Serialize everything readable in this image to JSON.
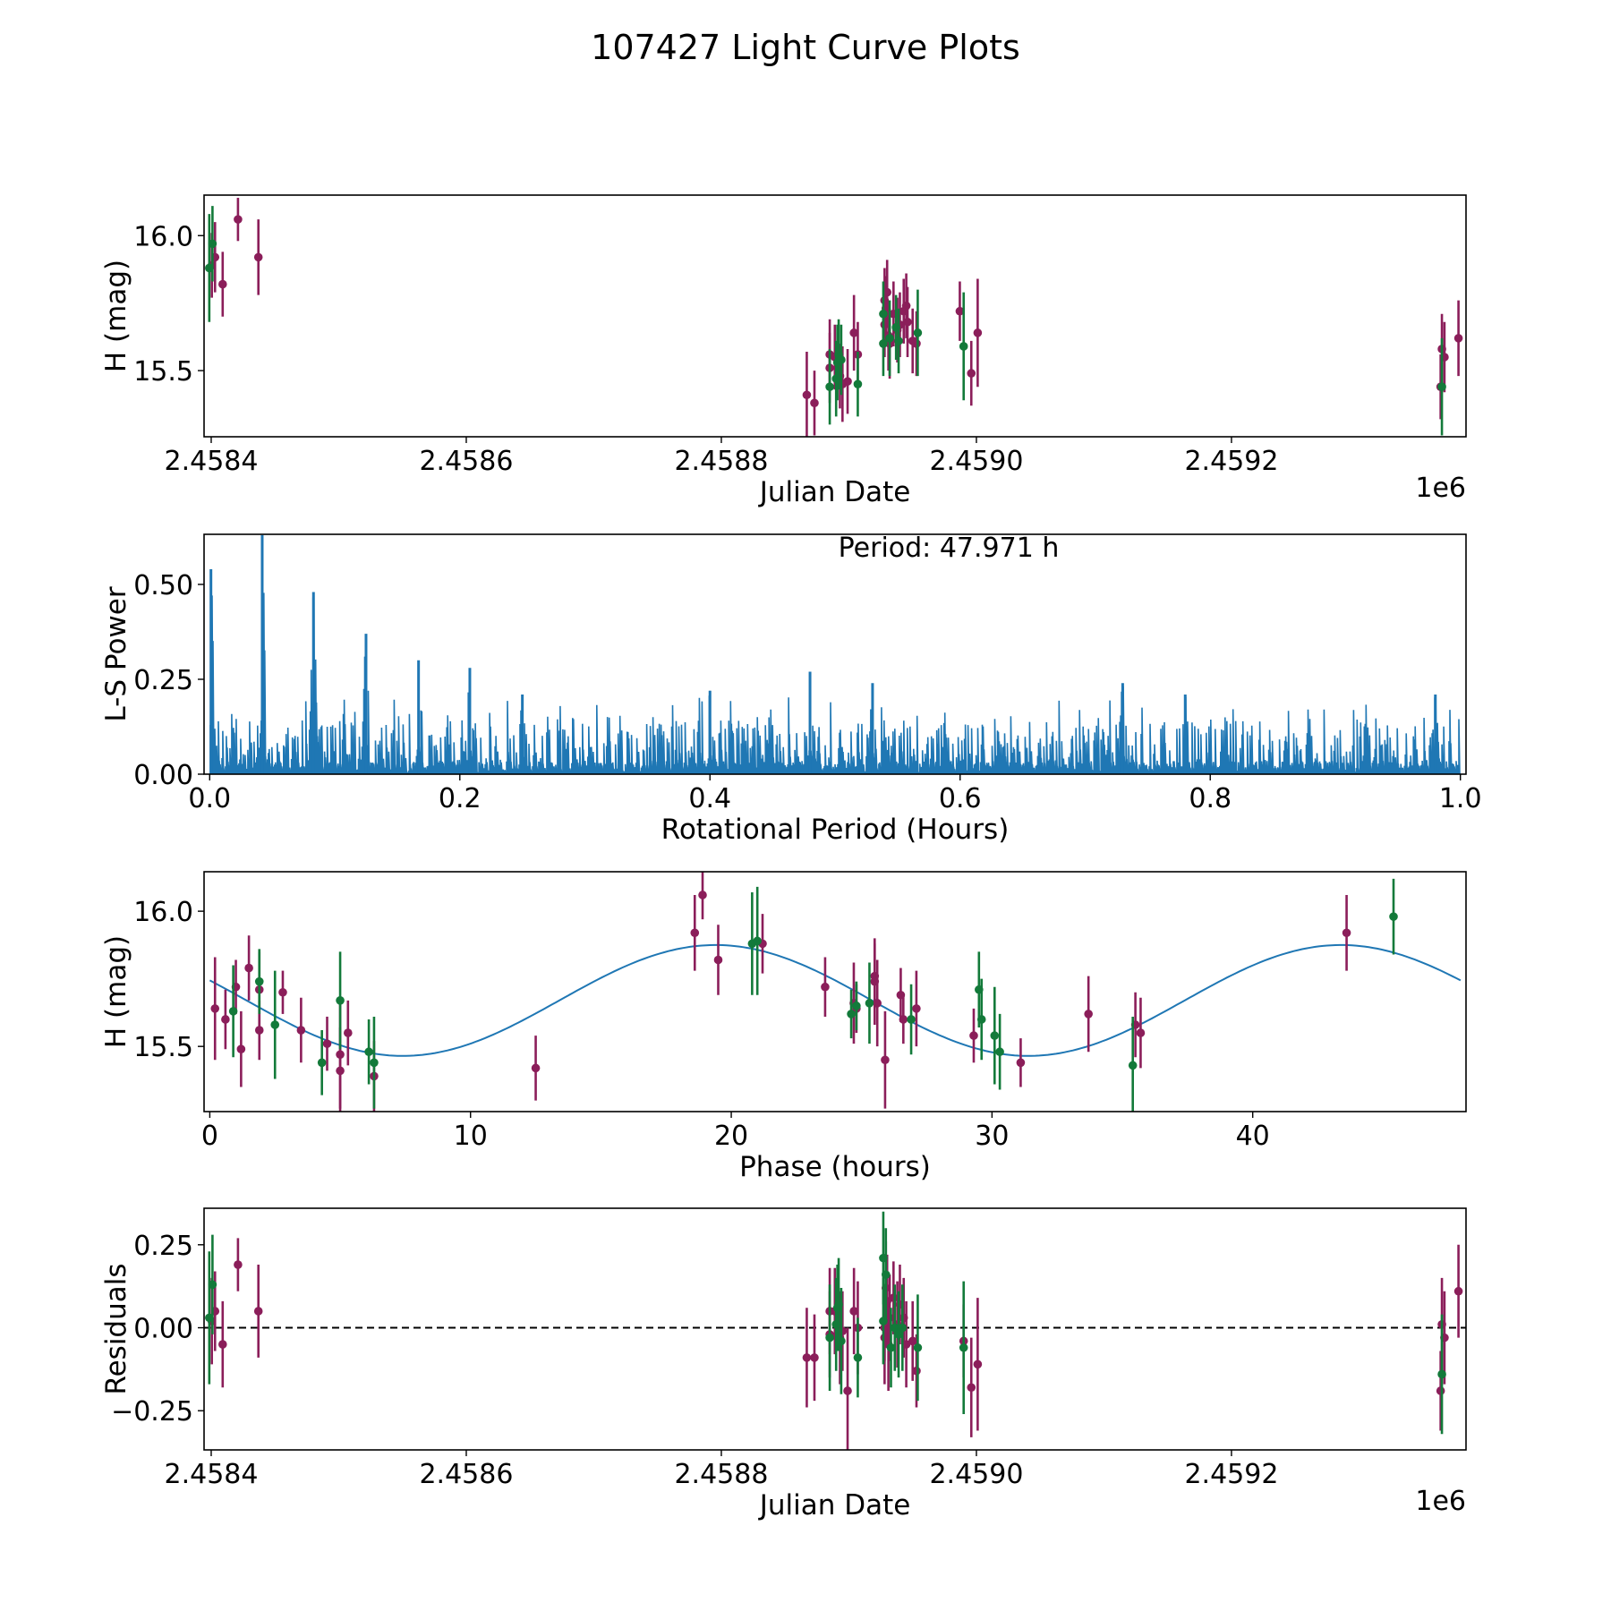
{
  "figure": {
    "title": "107427 Light Curve Plots",
    "colors": {
      "series_a": "#8b1e5a",
      "series_b": "#137a3a",
      "line": "#1f77b4",
      "axis": "#000000"
    }
  },
  "chart_data": [
    {
      "id": "lightcurve",
      "type": "scatter",
      "title": "",
      "xlabel": "Julian Date",
      "ylabel": "H (mag)",
      "x_offset_label": "1e6",
      "xlim": [
        2458394.4,
        2459383.9
      ],
      "ylim": [
        15.255,
        16.15
      ],
      "xticks": [
        2458400,
        2458600,
        2458800,
        2459000,
        2459200
      ],
      "xtick_labels": [
        "2.4584",
        "2.4586",
        "2.4588",
        "2.4590",
        "2.4592"
      ],
      "yticks": [
        15.5,
        16.0
      ],
      "ytick_labels": [
        "15.5",
        "16.0"
      ],
      "grid": false,
      "series": [
        {
          "name": "magenta",
          "color": "#8b1e5a",
          "points": [
            [
              2458400.5,
              15.89,
              0.12
            ],
            [
              2458403,
              15.92,
              0.13
            ],
            [
              2458409,
              15.82,
              0.12
            ],
            [
              2458421,
              16.06,
              0.08
            ],
            [
              2458437,
              15.92,
              0.14
            ],
            [
              2458867,
              15.41,
              0.16
            ],
            [
              2458873,
              15.38,
              0.12
            ],
            [
              2458885,
              15.56,
              0.13
            ],
            [
              2458885,
              15.51,
              0.13
            ],
            [
              2458889,
              15.55,
              0.12
            ],
            [
              2458893,
              15.48,
              0.12
            ],
            [
              2458895,
              15.45,
              0.14
            ],
            [
              2458899,
              15.46,
              0.12
            ],
            [
              2458904,
              15.64,
              0.14
            ],
            [
              2458907,
              15.56,
              0.12
            ],
            [
              2458928,
              15.76,
              0.12
            ],
            [
              2458928,
              15.67,
              0.12
            ],
            [
              2458929,
              15.73,
              0.12
            ],
            [
              2458930,
              15.79,
              0.12
            ],
            [
              2458931,
              15.63,
              0.13
            ],
            [
              2458932,
              15.6,
              0.13
            ],
            [
              2458935,
              15.71,
              0.12
            ],
            [
              2458938,
              15.65,
              0.12
            ],
            [
              2458940,
              15.67,
              0.12
            ],
            [
              2458943,
              15.72,
              0.12
            ],
            [
              2458945,
              15.74,
              0.12
            ],
            [
              2458946,
              15.68,
              0.13
            ],
            [
              2458950,
              15.61,
              0.12
            ],
            [
              2458953,
              15.6,
              0.12
            ],
            [
              2458987,
              15.72,
              0.11
            ],
            [
              2458996,
              15.49,
              0.12
            ],
            [
              2459001,
              15.64,
              0.2
            ],
            [
              2459364,
              15.44,
              0.12
            ],
            [
              2459365,
              15.58,
              0.13
            ],
            [
              2459367,
              15.55,
              0.13
            ],
            [
              2459378,
              15.62,
              0.14
            ]
          ]
        },
        {
          "name": "green",
          "color": "#137a3a",
          "points": [
            [
              2458398.5,
              15.88,
              0.2
            ],
            [
              2458401,
              15.97,
              0.14
            ],
            [
              2458885,
              15.44,
              0.14
            ],
            [
              2458890,
              15.47,
              0.14
            ],
            [
              2458891,
              15.53,
              0.14
            ],
            [
              2458892,
              15.56,
              0.13
            ],
            [
              2458894,
              15.54,
              0.13
            ],
            [
              2458907,
              15.45,
              0.12
            ],
            [
              2458927,
              15.71,
              0.12
            ],
            [
              2458927,
              15.6,
              0.12
            ],
            [
              2458932,
              15.62,
              0.14
            ],
            [
              2458937,
              15.66,
              0.12
            ],
            [
              2458939,
              15.61,
              0.12
            ],
            [
              2458954,
              15.64,
              0.16
            ],
            [
              2458990,
              15.59,
              0.2
            ],
            [
              2459365,
              15.44,
              0.18
            ]
          ]
        }
      ]
    },
    {
      "id": "periodogram",
      "type": "line",
      "title": "",
      "annotation": "Period: 47.971 h",
      "xlabel": "Rotational Period (Hours)",
      "ylabel": "L-S Power",
      "xlim": [
        -0.0045,
        1.0045
      ],
      "ylim": [
        0.0,
        0.632
      ],
      "xticks": [
        0.0,
        0.2,
        0.4,
        0.6,
        0.8,
        1.0
      ],
      "xtick_labels": [
        "0.0",
        "0.2",
        "0.4",
        "0.6",
        "0.8",
        "1.0"
      ],
      "yticks": [
        0.0,
        0.25,
        0.5
      ],
      "ytick_labels": [
        "0.00",
        "0.25",
        "0.50"
      ],
      "grid": false,
      "peaks": [
        [
          0.001,
          0.54
        ],
        [
          0.042,
          0.63
        ],
        [
          0.083,
          0.48
        ],
        [
          0.125,
          0.37
        ],
        [
          0.167,
          0.3
        ],
        [
          0.208,
          0.28
        ],
        [
          0.25,
          0.21
        ],
        [
          0.4,
          0.22
        ],
        [
          0.48,
          0.27
        ],
        [
          0.53,
          0.24
        ],
        [
          0.73,
          0.24
        ],
        [
          0.78,
          0.21
        ],
        [
          0.98,
          0.21
        ]
      ],
      "noise_level": 0.12,
      "noise_max": 0.22
    },
    {
      "id": "phased",
      "type": "scatter",
      "title": "",
      "xlabel": "Phase (hours)",
      "ylabel": "H (mag)",
      "xlim": [
        -0.22,
        48.18
      ],
      "ylim": [
        15.259,
        16.146
      ],
      "xticks": [
        0,
        10,
        20,
        30,
        40
      ],
      "xtick_labels": [
        "0",
        "10",
        "20",
        "30",
        "40"
      ],
      "yticks": [
        15.5,
        16.0
      ],
      "ytick_labels": [
        "15.5",
        "16.0"
      ],
      "grid": false,
      "fit": {
        "period_h": 47.971,
        "mean": 15.67,
        "amplitude": 0.205,
        "peak_phase_h": 19.4,
        "x_range": [
          0,
          47.971
        ]
      },
      "series": [
        {
          "name": "magenta",
          "color": "#8b1e5a",
          "points": [
            [
              0.2,
              15.64,
              0.19
            ],
            [
              0.6,
              15.6,
              0.11
            ],
            [
              1.0,
              15.72,
              0.1
            ],
            [
              1.2,
              15.49,
              0.14
            ],
            [
              1.5,
              15.79,
              0.12
            ],
            [
              1.9,
              15.71,
              0.14
            ],
            [
              1.9,
              15.56,
              0.11
            ],
            [
              2.8,
              15.7,
              0.08
            ],
            [
              3.5,
              15.56,
              0.12
            ],
            [
              4.5,
              15.51,
              0.1
            ],
            [
              5.0,
              15.47,
              0.2
            ],
            [
              5.0,
              15.41,
              0.16
            ],
            [
              5.3,
              15.55,
              0.12
            ],
            [
              6.3,
              15.39,
              0.13
            ],
            [
              12.5,
              15.42,
              0.12
            ],
            [
              18.6,
              15.92,
              0.14
            ],
            [
              18.9,
              16.06,
              0.09
            ],
            [
              19.5,
              15.82,
              0.13
            ],
            [
              21.2,
              15.88,
              0.11
            ],
            [
              23.6,
              15.72,
              0.11
            ],
            [
              24.7,
              15.66,
              0.15
            ],
            [
              24.8,
              15.64,
              0.09
            ],
            [
              25.5,
              15.76,
              0.12
            ],
            [
              25.5,
              15.74,
              0.16
            ],
            [
              25.6,
              15.66,
              0.16
            ],
            [
              25.9,
              15.45,
              0.18
            ],
            [
              26.5,
              15.69,
              0.1
            ],
            [
              26.6,
              15.6,
              0.09
            ],
            [
              27.1,
              15.64,
              0.14
            ],
            [
              29.3,
              15.54,
              0.1
            ],
            [
              31.1,
              15.44,
              0.09
            ],
            [
              33.7,
              15.62,
              0.14
            ],
            [
              35.5,
              15.58,
              0.12
            ],
            [
              35.7,
              15.55,
              0.13
            ],
            [
              43.6,
              15.92,
              0.14
            ]
          ]
        },
        {
          "name": "green",
          "color": "#137a3a",
          "points": [
            [
              0.9,
              15.63,
              0.17
            ],
            [
              1.9,
              15.74,
              0.12
            ],
            [
              2.5,
              15.58,
              0.2
            ],
            [
              4.3,
              15.44,
              0.12
            ],
            [
              5.0,
              15.67,
              0.18
            ],
            [
              6.1,
              15.48,
              0.12
            ],
            [
              6.3,
              15.44,
              0.17
            ],
            [
              20.8,
              15.88,
              0.19
            ],
            [
              21.0,
              15.89,
              0.2
            ],
            [
              24.6,
              15.62,
              0.09
            ],
            [
              24.8,
              15.65,
              0.09
            ],
            [
              25.3,
              15.66,
              0.15
            ],
            [
              26.9,
              15.6,
              0.13
            ],
            [
              29.5,
              15.71,
              0.14
            ],
            [
              29.6,
              15.6,
              0.15
            ],
            [
              30.1,
              15.54,
              0.18
            ],
            [
              30.3,
              15.48,
              0.14
            ],
            [
              35.4,
              15.43,
              0.18
            ],
            [
              45.4,
              15.98,
              0.14
            ]
          ]
        }
      ]
    },
    {
      "id": "residuals",
      "type": "scatter",
      "title": "",
      "xlabel": "Julian Date",
      "ylabel": "Residuals",
      "x_offset_label": "1e6",
      "xlim": [
        2458394.4,
        2459383.9
      ],
      "ylim": [
        -0.368,
        0.36
      ],
      "xticks": [
        2458400,
        2458600,
        2458800,
        2459000,
        2459200
      ],
      "xtick_labels": [
        "2.4584",
        "2.4586",
        "2.4588",
        "2.4590",
        "2.4592"
      ],
      "yticks": [
        -0.25,
        0.0,
        0.25
      ],
      "ytick_labels": [
        "−0.25",
        "0.00",
        "0.25"
      ],
      "zero_line": "dashed",
      "grid": false,
      "series": [
        {
          "name": "magenta",
          "color": "#8b1e5a",
          "points": [
            [
              2458400.5,
              0.02,
              0.13
            ],
            [
              2458403,
              0.05,
              0.12
            ],
            [
              2458409,
              -0.05,
              0.13
            ],
            [
              2458421,
              0.19,
              0.08
            ],
            [
              2458437,
              0.05,
              0.14
            ],
            [
              2458867,
              -0.09,
              0.15
            ],
            [
              2458873,
              -0.09,
              0.13
            ],
            [
              2458885,
              0.05,
              0.13
            ],
            [
              2458885,
              -0.02,
              0.13
            ],
            [
              2458889,
              0.05,
              0.13
            ],
            [
              2458893,
              -0.03,
              0.14
            ],
            [
              2458895,
              -0.01,
              0.12
            ],
            [
              2458899,
              -0.19,
              0.19
            ],
            [
              2458904,
              0.05,
              0.13
            ],
            [
              2458907,
              0.0,
              0.14
            ],
            [
              2458928,
              0.0,
              0.1
            ],
            [
              2458928,
              -0.03,
              0.14
            ],
            [
              2458929,
              0.12,
              0.14
            ],
            [
              2458930,
              0.08,
              0.14
            ],
            [
              2458931,
              -0.05,
              0.14
            ],
            [
              2458932,
              0.03,
              0.13
            ],
            [
              2458935,
              0.09,
              0.11
            ],
            [
              2458938,
              0.01,
              0.13
            ],
            [
              2458940,
              0.07,
              0.12
            ],
            [
              2458943,
              0.03,
              0.12
            ],
            [
              2458945,
              -0.05,
              0.13
            ],
            [
              2458950,
              -0.04,
              0.12
            ],
            [
              2458953,
              -0.13,
              0.11
            ],
            [
              2458996,
              -0.18,
              0.15
            ],
            [
              2459001,
              -0.11,
              0.2
            ],
            [
              2458990,
              -0.04,
              0.11
            ],
            [
              2459364,
              -0.19,
              0.12
            ],
            [
              2459365,
              0.01,
              0.14
            ],
            [
              2459367,
              -0.03,
              0.14
            ],
            [
              2459378,
              0.11,
              0.14
            ]
          ]
        },
        {
          "name": "green",
          "color": "#137a3a",
          "points": [
            [
              2458398.5,
              0.03,
              0.2
            ],
            [
              2458401,
              0.13,
              0.15
            ],
            [
              2458885,
              -0.03,
              0.16
            ],
            [
              2458890,
              0.01,
              0.14
            ],
            [
              2458891,
              0.06,
              0.13
            ],
            [
              2458892,
              0.07,
              0.14
            ],
            [
              2458894,
              -0.04,
              0.16
            ],
            [
              2458907,
              -0.09,
              0.12
            ],
            [
              2458927,
              0.21,
              0.14
            ],
            [
              2458927,
              0.02,
              0.13
            ],
            [
              2458929,
              0.16,
              0.14
            ],
            [
              2458933,
              -0.06,
              0.12
            ],
            [
              2458936,
              0.0,
              0.13
            ],
            [
              2458939,
              -0.02,
              0.13
            ],
            [
              2458942,
              0.0,
              0.13
            ],
            [
              2458954,
              -0.06,
              0.16
            ],
            [
              2458990,
              -0.06,
              0.2
            ],
            [
              2459365,
              -0.14,
              0.18
            ]
          ]
        }
      ]
    }
  ]
}
